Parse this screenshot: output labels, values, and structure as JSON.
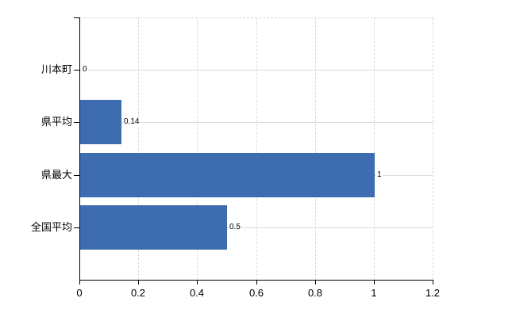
{
  "chart_data": {
    "type": "bar",
    "orientation": "horizontal",
    "title": "",
    "xlabel": "",
    "ylabel": "",
    "categories": [
      "川本町",
      "県平均",
      "県最大",
      "全国平均"
    ],
    "values": [
      0,
      0.14,
      1,
      0.5
    ],
    "value_labels": [
      "0",
      "0.14",
      "1",
      "0.5"
    ],
    "x_ticks": [
      0,
      0.2,
      0.4,
      0.6,
      0.8,
      1,
      1.2
    ],
    "x_tick_labels": [
      "0",
      "0.2",
      "0.4",
      "0.6",
      "0.8",
      "1",
      "1.2"
    ],
    "xlim": [
      0,
      1.2
    ],
    "legend": "none",
    "grid": {
      "vertical": "dashed",
      "horizontal": "solid-at-category-centers"
    },
    "colors": {
      "bar": "#3e6cb0",
      "vgrid": "#d9d9d9",
      "hgrid": "#d9ddd6",
      "axis": "#000000",
      "text": "#000000",
      "background": "#ffffff"
    }
  }
}
